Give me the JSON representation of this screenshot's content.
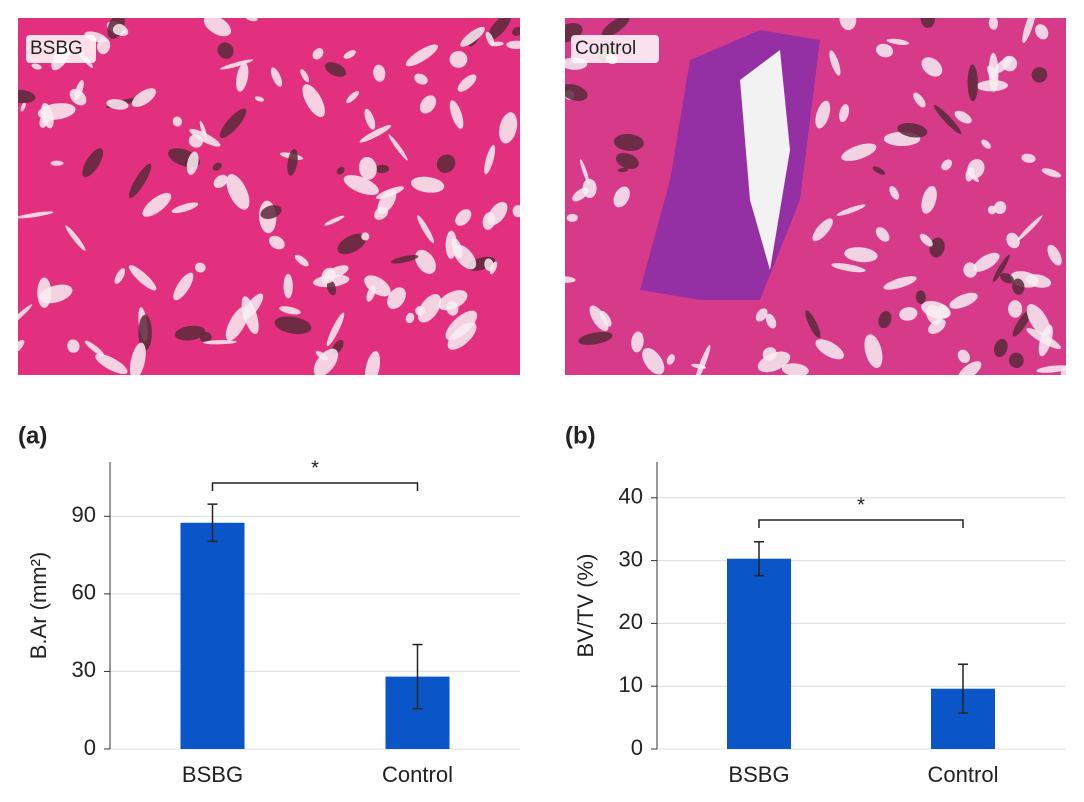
{
  "images": [
    {
      "label": "BSBG"
    },
    {
      "label": "Control"
    }
  ],
  "chart_data": [
    {
      "type": "bar",
      "panel": "(a)",
      "y_label": "B.Ar (mm²)",
      "categories": [
        "BSBG",
        "Control"
      ],
      "series": [
        {
          "color": "#0a56c8",
          "values": [
            87.5,
            28
          ],
          "errors": [
            7.2,
            12.4
          ]
        }
      ],
      "ylim": [
        0,
        111
      ],
      "yticks": [
        0,
        30,
        60,
        90
      ],
      "grid": true,
      "annotation": "*"
    },
    {
      "type": "bar",
      "panel": "(b)",
      "y_label": "BV/TV (%)",
      "categories": [
        "BSBG",
        "Control"
      ],
      "series": [
        {
          "color": "#0a56c8",
          "values": [
            30.3,
            9.6
          ],
          "errors": [
            2.7,
            3.9
          ]
        }
      ],
      "ylim": [
        0,
        45.7
      ],
      "yticks": [
        0,
        10,
        20,
        30,
        40
      ],
      "grid": true,
      "annotation": "*"
    }
  ]
}
